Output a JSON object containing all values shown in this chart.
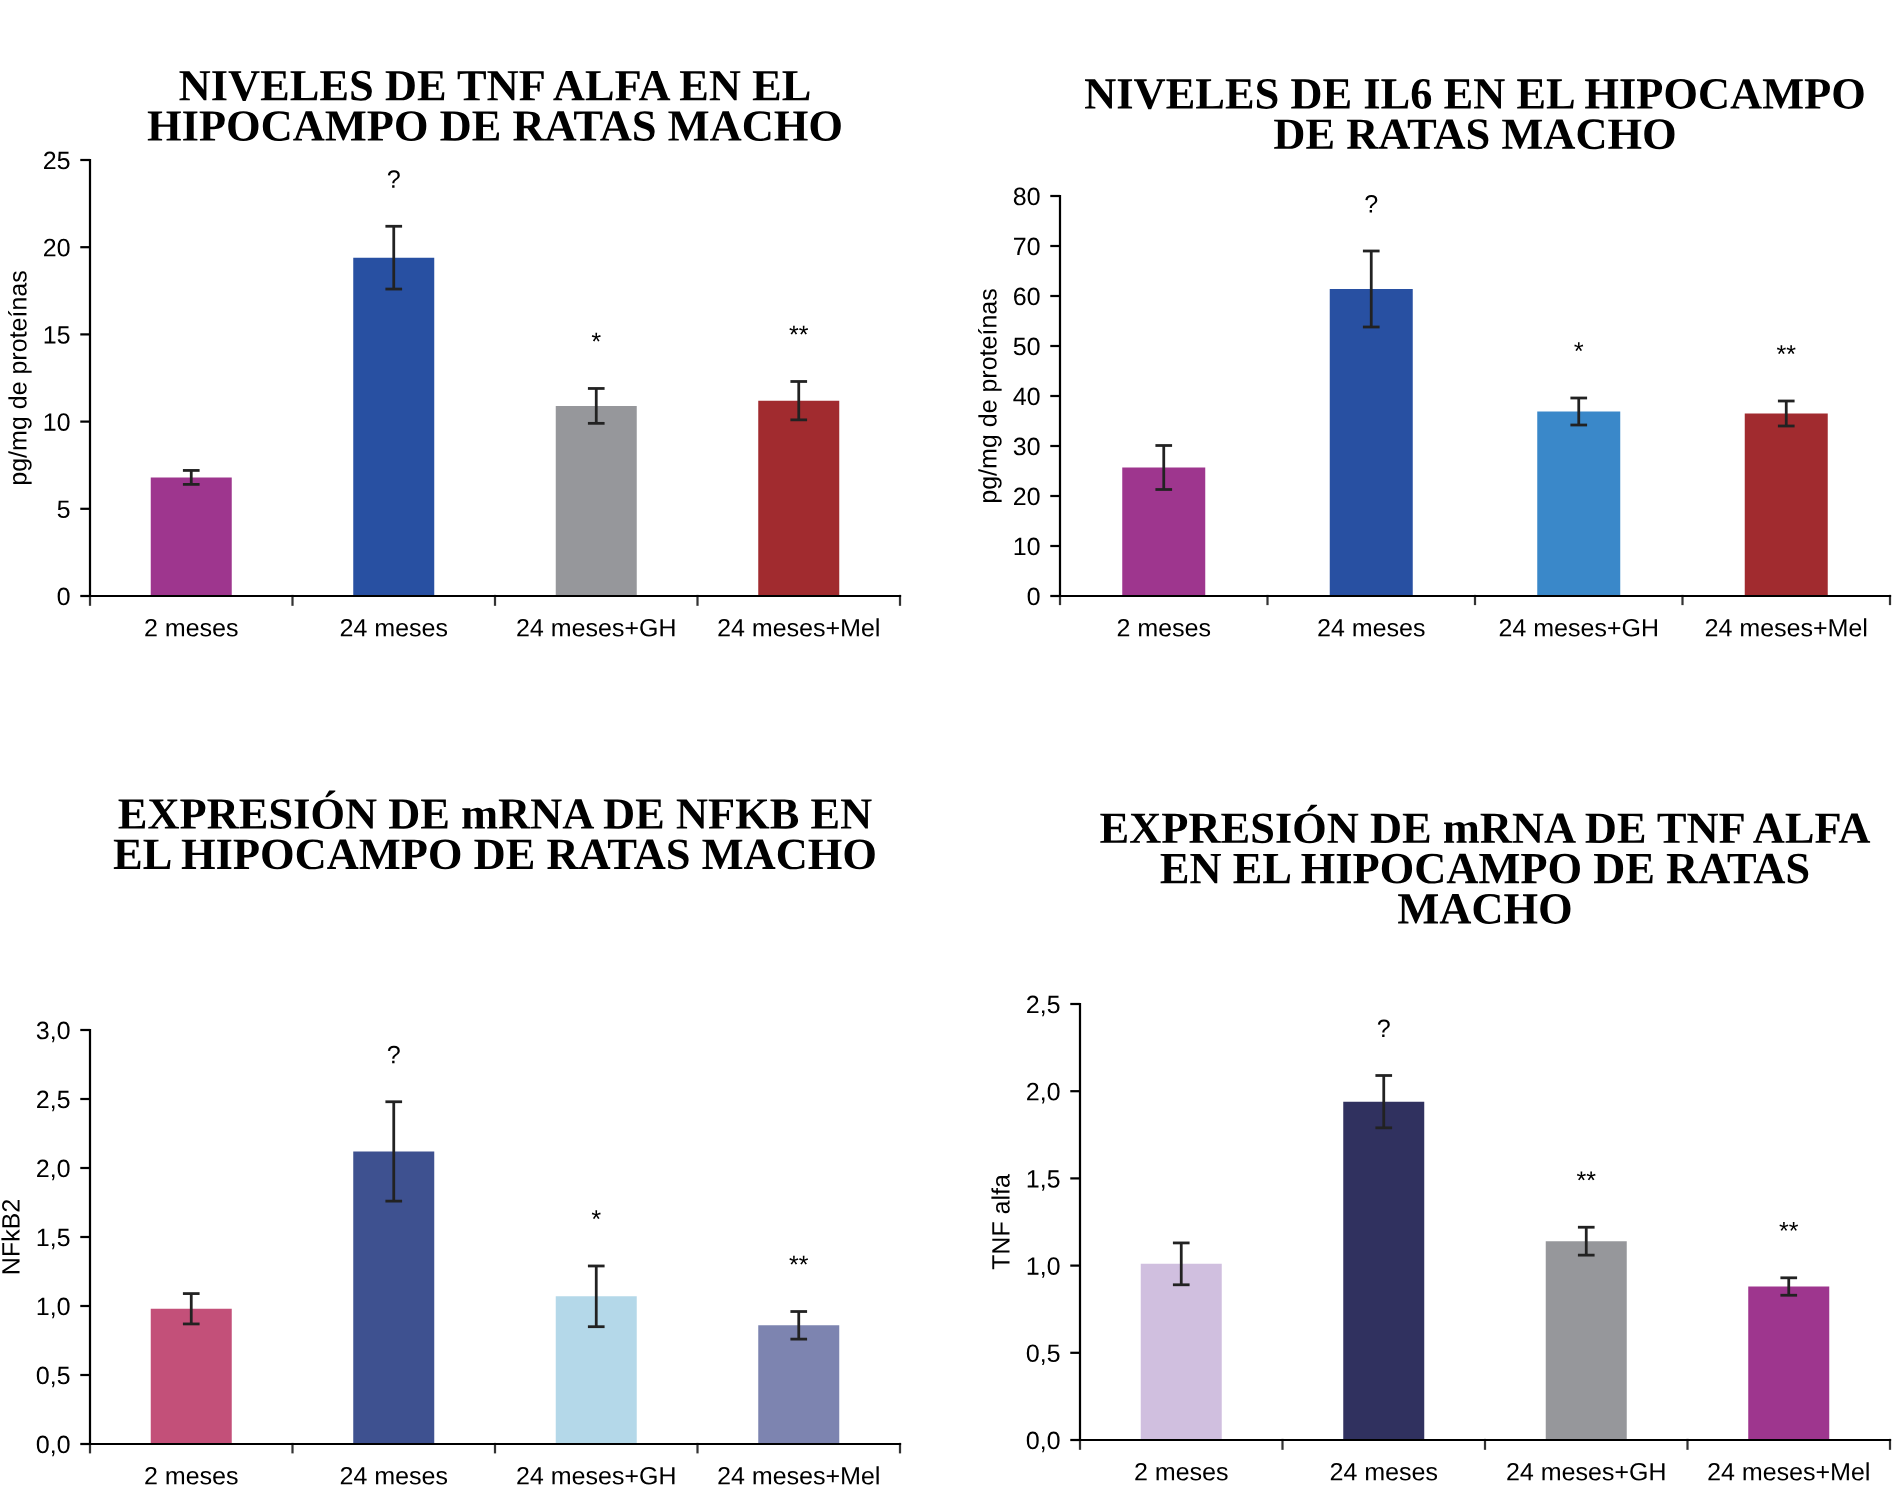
{
  "chart_data": [
    {
      "type": "bar",
      "title": "NIVELES DE TNF ALFA EN EL\nHIPOCAMPO DE RATAS MACHO",
      "ylabel": "pg/mg de proteínas",
      "categories": [
        "2 meses",
        "24 meses",
        "24 meses+GH",
        "24 meses+Mel"
      ],
      "values": [
        6.8,
        19.4,
        10.9,
        11.2
      ],
      "colors": [
        "#9e368e",
        "#2850a2",
        "#96979b",
        "#a12b2f"
      ],
      "errors": [
        0.4,
        1.8,
        1.0,
        1.1
      ],
      "ylim": [
        0,
        25
      ],
      "yticks": [
        0,
        5,
        10,
        15,
        20,
        25
      ],
      "grid": false,
      "annotations": [
        "?",
        "*",
        "**"
      ]
    },
    {
      "type": "bar",
      "title": "NIVELES DE IL6 EN EL HIPOCAMPO\nDE RATAS MACHO",
      "ylabel": "pg/mg de proteínas",
      "categories": [
        "2 meses",
        "24 meses",
        "24 meses+GH",
        "24 meses+Mel"
      ],
      "values": [
        25.7,
        61.4,
        36.9,
        36.5
      ],
      "colors": [
        "#9e368e",
        "#2850a2",
        "#3a88c9",
        "#a12b2f"
      ],
      "errors": [
        4.4,
        7.6,
        2.7,
        2.5
      ],
      "ylim": [
        0,
        80
      ],
      "yticks": [
        0,
        10,
        20,
        30,
        40,
        50,
        60,
        70,
        80
      ],
      "grid": false,
      "annotations": [
        "?",
        "*",
        "**"
      ]
    },
    {
      "type": "bar",
      "title": "EXPRESIÓN DE mRNA DE NFKB EN\nEL HIPOCAMPO DE RATAS MACHO",
      "ylabel": "NFkB2",
      "categories": [
        "2 meses",
        "24 meses",
        "24 meses+GH",
        "24 meses+Mel"
      ],
      "values": [
        0.98,
        2.12,
        1.07,
        0.86
      ],
      "colors": [
        "#c35079",
        "#3e5190",
        "#b4d8e9",
        "#7d84b0"
      ],
      "errors": [
        0.11,
        0.36,
        0.22,
        0.1
      ],
      "ylim": [
        0,
        3
      ],
      "yticks": [
        {
          "value": 0,
          "label": "0,0"
        },
        {
          "value": 0.5,
          "label": "0,5"
        },
        {
          "value": 1,
          "label": "1,0"
        },
        {
          "value": 1.5,
          "label": "1,5"
        },
        {
          "value": 2,
          "label": "2,0"
        },
        {
          "value": 2.5,
          "label": "2,5"
        },
        {
          "value": 3,
          "label": "3,0"
        }
      ],
      "grid": false,
      "annotations": [
        "?",
        "*",
        "**"
      ]
    },
    {
      "type": "bar",
      "title": "EXPRESIÓN DE mRNA DE TNF ALFA\nEN EL HIPOCAMPO DE RATAS\nMACHO",
      "ylabel": "TNF alfa",
      "categories": [
        "2 meses",
        "24 meses",
        "24 meses+GH",
        "24 meses+Mel"
      ],
      "values": [
        1.01,
        1.94,
        1.14,
        0.88
      ],
      "colors": [
        "#d0bfdf",
        "#30315f",
        "#96979b",
        "#9e368e"
      ],
      "errors": [
        0.12,
        0.15,
        0.08,
        0.05
      ],
      "ylim": [
        0,
        2.5
      ],
      "yticks": [
        {
          "value": 0,
          "label": "0,0"
        },
        {
          "value": 0.5,
          "label": "0,5"
        },
        {
          "value": 1,
          "label": "1,0"
        },
        {
          "value": 1.5,
          "label": "1,5"
        },
        {
          "value": 2,
          "label": "2,0"
        },
        {
          "value": 2.5,
          "label": "2,5"
        }
      ],
      "grid": false,
      "annotations": [
        "?",
        "**",
        "**"
      ]
    }
  ]
}
